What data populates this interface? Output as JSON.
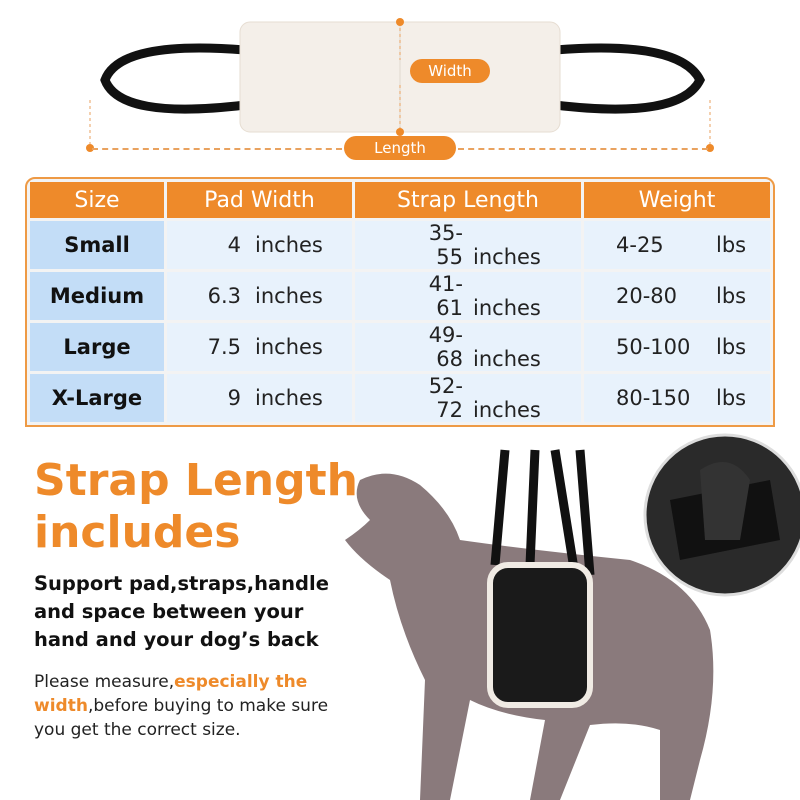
{
  "diagram": {
    "width_label": "Width",
    "length_label": "Length"
  },
  "table": {
    "headers": [
      "Size",
      "Pad Width",
      "Strap Length",
      "Weight"
    ],
    "rows": [
      {
        "size": "Small",
        "pad": "4",
        "pad_unit": "inches",
        "strap": "35-55",
        "strap_unit": "inches",
        "weight": "4-25",
        "weight_unit": "lbs"
      },
      {
        "size": "Medium",
        "pad": "6.3",
        "pad_unit": "inches",
        "strap": "41-61",
        "strap_unit": "inches",
        "weight": "20-80",
        "weight_unit": "lbs"
      },
      {
        "size": "Large",
        "pad": "7.5",
        "pad_unit": "inches",
        "strap": "49-68",
        "strap_unit": "inches",
        "weight": "50-100",
        "weight_unit": "lbs"
      },
      {
        "size": "X-Large",
        "pad": "9",
        "pad_unit": "inches",
        "strap": "52-72",
        "strap_unit": "inches",
        "weight": "80-150",
        "weight_unit": "lbs"
      }
    ]
  },
  "headline": {
    "line1": "Strap Length",
    "line2": "includes"
  },
  "subhead": {
    "line1": "Support pad,straps,handle",
    "line2": "and space between your",
    "line3": "hand and your dog’s back"
  },
  "note": {
    "pre": "Please measure,",
    "highlight1": "especially the",
    "highlight2": "width",
    "post1": ",before buying to make sure",
    "post2": "you get the correct size."
  },
  "colors": {
    "accent": "#ee8a2a",
    "cell": "#e8f2fc",
    "size_cell": "#c3ddf7"
  }
}
